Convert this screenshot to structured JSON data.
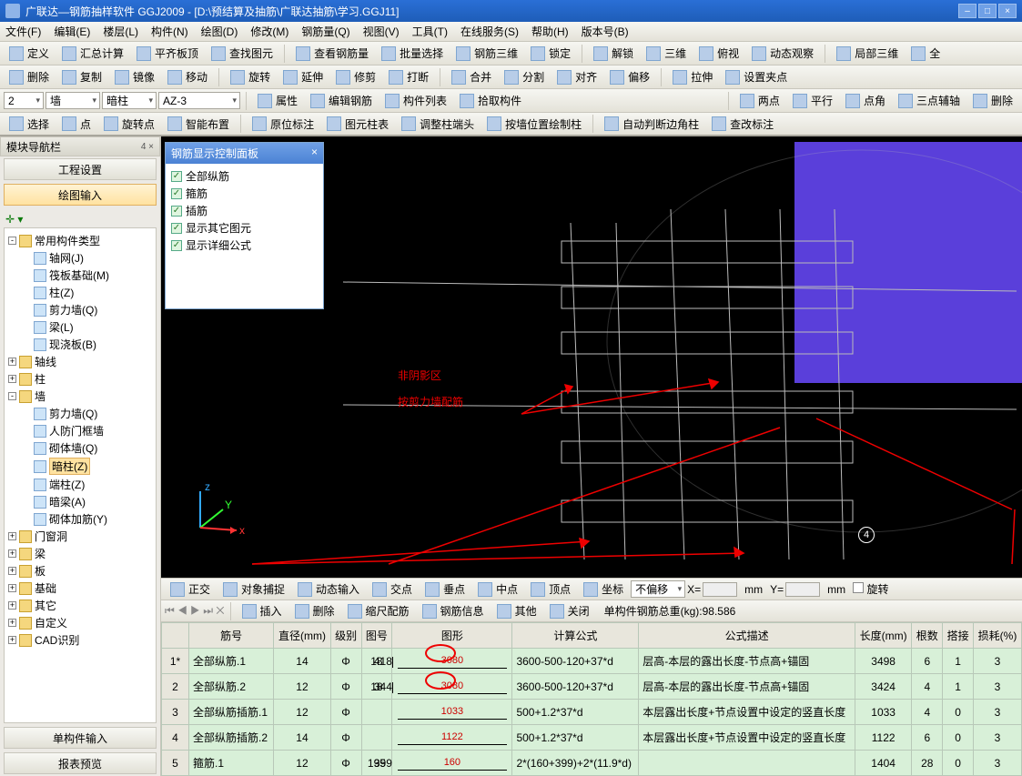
{
  "window": {
    "title": "广联达—钢筋抽样软件 GGJ2009 - [D:\\预结算及抽筋\\广联达抽筋\\学习.GGJ11]"
  },
  "menus": [
    "文件(F)",
    "编辑(E)",
    "楼层(L)",
    "构件(N)",
    "绘图(D)",
    "修改(M)",
    "钢筋量(Q)",
    "视图(V)",
    "工具(T)",
    "在线服务(S)",
    "帮助(H)",
    "版本号(B)"
  ],
  "tb1": [
    "定义",
    "汇总计算",
    "平齐板顶",
    "查找图元",
    "查看钢筋量",
    "批量选择",
    "钢筋三维",
    "锁定",
    "解锁",
    "三维",
    "俯视",
    "动态观察",
    "局部三维",
    "全"
  ],
  "tb2": [
    "删除",
    "复制",
    "镜像",
    "移动",
    "旋转",
    "延伸",
    "修剪",
    "打断",
    "合并",
    "分割",
    "对齐",
    "偏移",
    "拉伸",
    "设置夹点"
  ],
  "tb3": {
    "sel1": "2",
    "sel2": "墙",
    "sel3": "暗柱",
    "sel4": "AZ-3",
    "b1": "属性",
    "b2": "编辑钢筋",
    "b3": "构件列表",
    "b4": "拾取构件",
    "b5": "两点",
    "b6": "平行",
    "b7": "点角",
    "b8": "三点辅轴",
    "b9": "删除"
  },
  "tb4": [
    "选择",
    "点",
    "旋转点",
    "智能布置",
    "原位标注",
    "图元柱表",
    "调整柱端头",
    "按墙位置绘制柱",
    "自动判断边角柱",
    "查改标注"
  ],
  "navbar": {
    "title": "模块导航栏",
    "b1": "工程设置",
    "b2": "绘图输入",
    "b3": "单构件输入",
    "b4": "报表预览"
  },
  "tree": [
    {
      "l": 0,
      "exp": "-",
      "ic": "folder",
      "t": "常用构件类型"
    },
    {
      "l": 1,
      "ic": "leaf",
      "t": "轴网(J)"
    },
    {
      "l": 1,
      "ic": "leaf",
      "t": "筏板基础(M)"
    },
    {
      "l": 1,
      "ic": "leaf",
      "t": "柱(Z)"
    },
    {
      "l": 1,
      "ic": "leaf",
      "t": "剪力墙(Q)"
    },
    {
      "l": 1,
      "ic": "leaf",
      "t": "梁(L)"
    },
    {
      "l": 1,
      "ic": "leaf",
      "t": "现浇板(B)"
    },
    {
      "l": 0,
      "exp": "+",
      "ic": "folder",
      "t": "轴线"
    },
    {
      "l": 0,
      "exp": "+",
      "ic": "folder",
      "t": "柱"
    },
    {
      "l": 0,
      "exp": "-",
      "ic": "folder",
      "t": "墙"
    },
    {
      "l": 1,
      "ic": "leaf",
      "t": "剪力墙(Q)"
    },
    {
      "l": 1,
      "ic": "leaf",
      "t": "人防门框墙"
    },
    {
      "l": 1,
      "ic": "leaf",
      "t": "砌体墙(Q)"
    },
    {
      "l": 1,
      "ic": "leaf",
      "t": "暗柱(Z)",
      "sel": true
    },
    {
      "l": 1,
      "ic": "leaf",
      "t": "端柱(Z)"
    },
    {
      "l": 1,
      "ic": "leaf",
      "t": "暗梁(A)"
    },
    {
      "l": 1,
      "ic": "leaf",
      "t": "砌体加筋(Y)"
    },
    {
      "l": 0,
      "exp": "+",
      "ic": "folder",
      "t": "门窗洞"
    },
    {
      "l": 0,
      "exp": "+",
      "ic": "folder",
      "t": "梁"
    },
    {
      "l": 0,
      "exp": "+",
      "ic": "folder",
      "t": "板"
    },
    {
      "l": 0,
      "exp": "+",
      "ic": "folder",
      "t": "基础"
    },
    {
      "l": 0,
      "exp": "+",
      "ic": "folder",
      "t": "其它"
    },
    {
      "l": 0,
      "exp": "+",
      "ic": "folder",
      "t": "自定义"
    },
    {
      "l": 0,
      "exp": "+",
      "ic": "folder",
      "t": "CAD识别"
    }
  ],
  "floatpanel": {
    "title": "钢筋显示控制面板",
    "items": [
      "全部纵筋",
      "箍筋",
      "插筋",
      "显示其它图元",
      "显示详细公式"
    ]
  },
  "annotation": {
    "l1": "非阴影区",
    "l2": "按剪力墙配筋"
  },
  "status": {
    "items": [
      "正交",
      "对象捕捉",
      "动态输入",
      "交点",
      "垂点",
      "中点",
      "顶点",
      "坐标"
    ],
    "offset": "不偏移",
    "x": "X=",
    "y": "Y=",
    "rot": "旋转",
    "mm": "mm"
  },
  "info": {
    "items": [
      "插入",
      "删除",
      "缩尺配筋",
      "钢筋信息",
      "其他",
      "关闭"
    ],
    "weight_label": "单构件钢筋总重(kg):",
    "weight": "98.586"
  },
  "table": {
    "headers": [
      "",
      "筋号",
      "直径(mm)",
      "级别",
      "图号",
      "图形",
      "计算公式",
      "公式描述",
      "长度(mm)",
      "根数",
      "搭接",
      "损耗(%)"
    ],
    "rows": [
      {
        "n": "1*",
        "name": "全部纵筋.1",
        "dia": "14",
        "lvl": "Φ",
        "fig": "18",
        "shape": {
          "l": "418",
          "m": "3080",
          "rise": true
        },
        "formula": "3600-500-120+37*d",
        "desc": "层高-本层的露出长度-节点高+锚固",
        "len": "3498",
        "cnt": "6",
        "lap": "1",
        "loss": "3"
      },
      {
        "n": "2",
        "name": "全部纵筋.2",
        "dia": "12",
        "lvl": "Φ",
        "fig": "18",
        "shape": {
          "l": "344",
          "m": "3080",
          "rise": true
        },
        "formula": "3600-500-120+37*d",
        "desc": "层高-本层的露出长度-节点高+锚固",
        "len": "3424",
        "cnt": "4",
        "lap": "1",
        "loss": "3"
      },
      {
        "n": "3",
        "name": "全部纵筋插筋.1",
        "dia": "12",
        "lvl": "Φ",
        "fig": "",
        "shape": {
          "m": "1033"
        },
        "formula": "500+1.2*37*d",
        "desc": "本层露出长度+节点设置中设定的竖直长度",
        "len": "1033",
        "cnt": "4",
        "lap": "0",
        "loss": "3"
      },
      {
        "n": "4",
        "name": "全部纵筋插筋.2",
        "dia": "14",
        "lvl": "Φ",
        "fig": "",
        "shape": {
          "m": "1122"
        },
        "formula": "500+1.2*37*d",
        "desc": "本层露出长度+节点设置中设定的竖直长度",
        "len": "1122",
        "cnt": "6",
        "lap": "0",
        "loss": "3"
      },
      {
        "n": "5",
        "name": "箍筋.1",
        "dia": "12",
        "lvl": "Φ",
        "fig": "195",
        "shape": {
          "l": "399",
          "m": "160"
        },
        "formula": "2*(160+399)+2*(11.9*d)",
        "desc": "",
        "len": "1404",
        "cnt": "28",
        "lap": "0",
        "loss": "3"
      }
    ]
  },
  "colors": {
    "purple": "#5a3fda",
    "red": "#e00000",
    "accent": "#4b82d4"
  },
  "badge": "4"
}
